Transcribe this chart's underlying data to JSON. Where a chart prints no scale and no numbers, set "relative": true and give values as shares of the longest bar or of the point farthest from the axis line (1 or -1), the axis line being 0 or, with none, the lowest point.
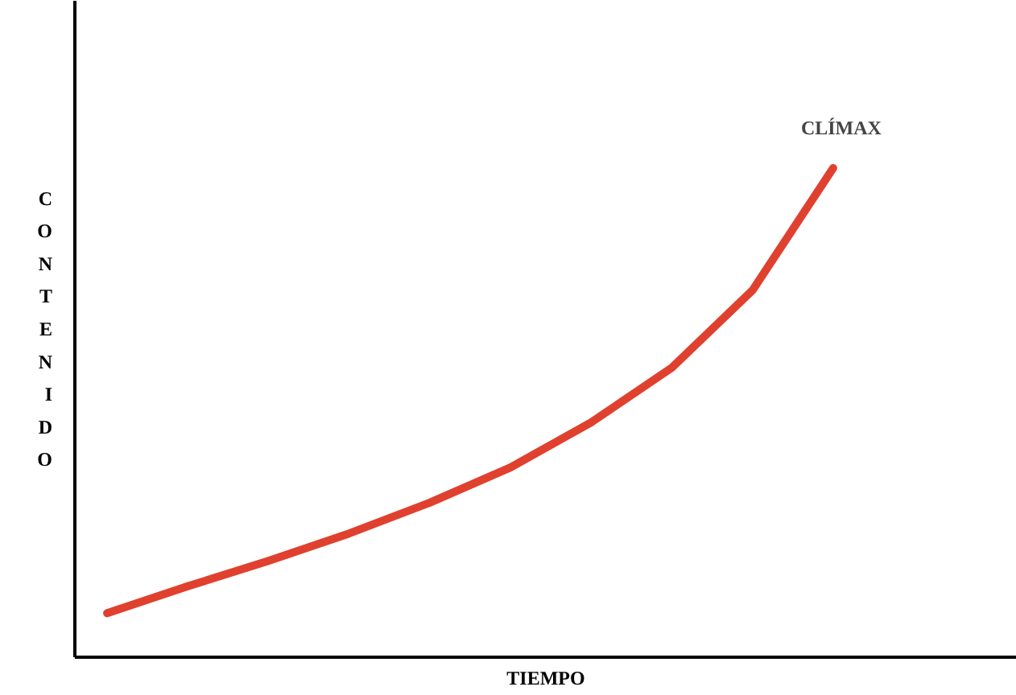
{
  "chart_data": {
    "type": "line",
    "relative": true,
    "xlabel": "TIEMPO",
    "ylabel": "CONTENIDO",
    "annotations": [
      "CLÍMAX"
    ],
    "categories": [
      null,
      null,
      null,
      null,
      null,
      null,
      null,
      null,
      null,
      null
    ],
    "series": [
      {
        "color": "#e0412f",
        "values": [
          0.09,
          0.145,
          0.197,
          0.253,
          0.316,
          0.388,
          0.48,
          0.592,
          0.75,
          1.0
        ]
      }
    ],
    "grid": false,
    "marker": "none",
    "line_style": "solid"
  }
}
